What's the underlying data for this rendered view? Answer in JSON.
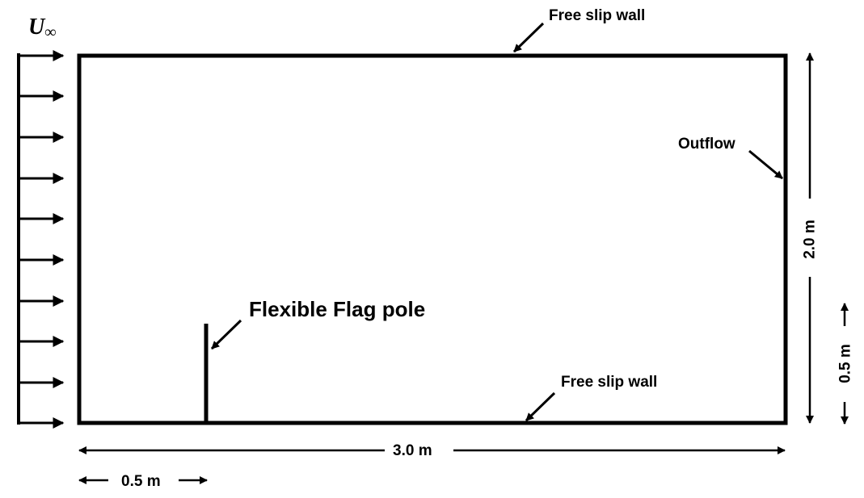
{
  "inflow": {
    "symbol": "U",
    "subscript": "∞"
  },
  "boundaries": {
    "top": "Free slip wall",
    "bottom": "Free slip wall",
    "right": "Outflow"
  },
  "pole": {
    "label": "Flexible Flag pole"
  },
  "dimensions": {
    "length": "3.0 m",
    "height": "2.0 m",
    "pole_offset": "0.5 m",
    "pole_height": "0.5 m"
  },
  "colors": {
    "stroke": "#000000",
    "background": "#ffffff"
  }
}
